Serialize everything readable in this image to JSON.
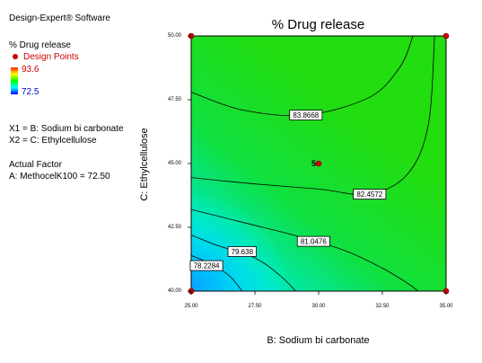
{
  "sidebar": {
    "software": "Design-Expert® Software",
    "response": "% Drug release",
    "design_points_label": "Design Points",
    "high_value": "93.6",
    "low_value": "72.5",
    "x1_label": "X1 = B: Sodium bi carbonate",
    "x2_label": "X2 = C: Ethylcellulose",
    "actual_factor_heading": "Actual Factor",
    "actual_factor_value": "A: MethocelK100 = 72.50"
  },
  "colors": {
    "design_point": "#cc0000",
    "contour_line": "#000000"
  },
  "chart_data": {
    "type": "contour",
    "title": "% Drug release",
    "xlabel": "B: Sodium bi carbonate",
    "ylabel": "C: Ethylcellulose",
    "xlim": [
      25.0,
      35.0
    ],
    "ylim": [
      40.0,
      50.0
    ],
    "x_ticks": [
      "25.00",
      "27.50",
      "30.00",
      "32.50",
      "35.00"
    ],
    "y_ticks": [
      "40.00",
      "42.50",
      "45.00",
      "47.50",
      "50.00"
    ],
    "contour_levels": [
      {
        "label": "78.2284",
        "label_at": [
          25.6,
          41.0
        ],
        "points": [
          [
            25.0,
            41.4
          ],
          [
            25.8,
            41.05
          ],
          [
            26.5,
            40.6
          ],
          [
            27.0,
            40.0
          ]
        ]
      },
      {
        "label": "79.638",
        "label_at": [
          27.0,
          41.55
        ],
        "points": [
          [
            25.0,
            42.2
          ],
          [
            26.0,
            41.8
          ],
          [
            27.5,
            41.3
          ],
          [
            28.5,
            40.6
          ],
          [
            29.1,
            40.0
          ]
        ]
      },
      {
        "label": "81.0476",
        "label_at": [
          29.8,
          41.95
        ],
        "points": [
          [
            25.0,
            43.2
          ],
          [
            27.0,
            42.7
          ],
          [
            29.0,
            42.2
          ],
          [
            31.0,
            41.6
          ],
          [
            32.5,
            40.9
          ],
          [
            33.5,
            40.3
          ],
          [
            33.9,
            40.0
          ]
        ]
      },
      {
        "label": "82.4572",
        "label_at": [
          32.0,
          43.8
        ],
        "points": [
          [
            25.0,
            44.45
          ],
          [
            27.5,
            44.2
          ],
          [
            30.0,
            44.0
          ],
          [
            32.0,
            43.8
          ],
          [
            33.5,
            44.6
          ],
          [
            34.3,
            46.5
          ],
          [
            34.55,
            50.0
          ]
        ]
      },
      {
        "label": "83.8668",
        "label_at": [
          29.5,
          46.9
        ],
        "points": [
          [
            25.0,
            47.8
          ],
          [
            27.0,
            47.1
          ],
          [
            29.5,
            46.9
          ],
          [
            32.0,
            47.6
          ],
          [
            33.2,
            48.8
          ],
          [
            33.7,
            50.0
          ]
        ]
      }
    ],
    "design_points": [
      {
        "x": 25.0,
        "y": 40.0,
        "label": ""
      },
      {
        "x": 35.0,
        "y": 40.0,
        "label": ""
      },
      {
        "x": 25.0,
        "y": 50.0,
        "label": ""
      },
      {
        "x": 35.0,
        "y": 50.0,
        "label": ""
      },
      {
        "x": 30.0,
        "y": 45.0,
        "label": "5"
      }
    ]
  }
}
